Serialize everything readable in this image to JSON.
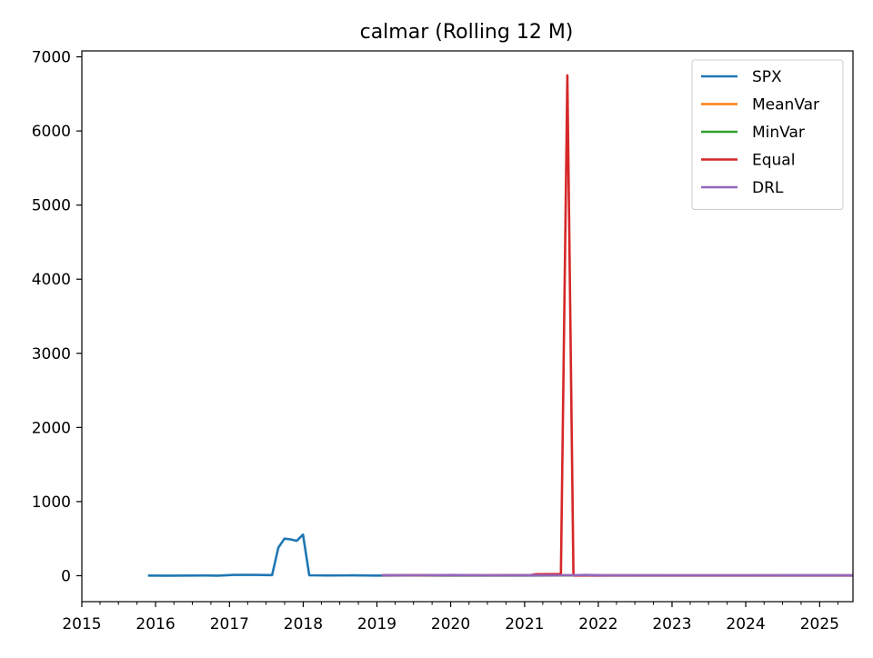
{
  "chart_data": {
    "type": "line",
    "title": "calmar (Rolling 12 M)",
    "xlabel": "",
    "ylabel": "",
    "x_type": "date",
    "xlim": [
      "2015-01-01",
      "2025-06-15"
    ],
    "ylim": [
      -350,
      7080
    ],
    "x_ticks": [
      "2015-01-01",
      "2016-01-01",
      "2017-01-01",
      "2018-01-01",
      "2019-01-01",
      "2020-01-01",
      "2021-01-01",
      "2022-01-01",
      "2023-01-01",
      "2024-01-01",
      "2025-01-01"
    ],
    "x_tick_labels": [
      "2015",
      "2016",
      "2017",
      "2018",
      "2019",
      "2020",
      "2021",
      "2022",
      "2023",
      "2024",
      "2025"
    ],
    "y_ticks": [
      0,
      1000,
      2000,
      3000,
      4000,
      5000,
      6000,
      7000
    ],
    "y_tick_labels": [
      "0",
      "1000",
      "2000",
      "3000",
      "4000",
      "5000",
      "6000",
      "7000"
    ],
    "legend_position": "top-right",
    "grid": false,
    "series": [
      {
        "name": "SPX",
        "color": "#1f77b4",
        "points": [
          [
            "2015-11-30",
            2
          ],
          [
            "2016-02-29",
            1
          ],
          [
            "2016-05-31",
            2
          ],
          [
            "2016-08-31",
            3
          ],
          [
            "2016-10-31",
            1
          ],
          [
            "2017-01-31",
            12
          ],
          [
            "2017-04-30",
            10
          ],
          [
            "2017-07-31",
            8
          ],
          [
            "2017-08-31",
            380
          ],
          [
            "2017-09-30",
            500
          ],
          [
            "2017-10-31",
            490
          ],
          [
            "2017-11-30",
            470
          ],
          [
            "2017-12-31",
            555
          ],
          [
            "2018-01-31",
            5
          ],
          [
            "2018-04-30",
            3
          ],
          [
            "2018-08-31",
            4
          ],
          [
            "2018-12-31",
            2
          ],
          [
            "2019-06-30",
            3
          ],
          [
            "2019-12-31",
            2
          ],
          [
            "2020-06-30",
            2
          ],
          [
            "2020-12-31",
            2
          ],
          [
            "2021-06-30",
            3
          ],
          [
            "2021-12-31",
            2
          ],
          [
            "2022-06-30",
            2
          ],
          [
            "2022-12-31",
            2
          ],
          [
            "2023-06-30",
            2
          ],
          [
            "2023-12-31",
            2
          ],
          [
            "2024-06-30",
            2
          ],
          [
            "2024-12-31",
            2
          ],
          [
            "2025-06-15",
            2
          ]
        ]
      },
      {
        "name": "MeanVar",
        "color": "#ff7f0e",
        "points": [
          [
            "2019-01-31",
            5
          ],
          [
            "2019-12-31",
            6
          ],
          [
            "2020-06-30",
            4
          ],
          [
            "2021-01-31",
            8
          ],
          [
            "2021-06-30",
            6
          ],
          [
            "2022-01-31",
            4
          ],
          [
            "2023-01-31",
            3
          ],
          [
            "2024-01-31",
            3
          ],
          [
            "2025-06-15",
            3
          ]
        ]
      },
      {
        "name": "MinVar",
        "color": "#2ca02c",
        "points": [
          [
            "2019-01-31",
            4
          ],
          [
            "2019-12-31",
            5
          ],
          [
            "2020-06-30",
            3
          ],
          [
            "2021-01-31",
            6
          ],
          [
            "2021-06-30",
            5
          ],
          [
            "2022-01-31",
            3
          ],
          [
            "2023-01-31",
            3
          ],
          [
            "2024-01-31",
            3
          ],
          [
            "2025-06-15",
            3
          ]
        ]
      },
      {
        "name": "Equal",
        "color": "#d62728",
        "points": [
          [
            "2019-01-31",
            6
          ],
          [
            "2019-12-31",
            8
          ],
          [
            "2020-06-30",
            5
          ],
          [
            "2021-01-31",
            8
          ],
          [
            "2021-02-28",
            20
          ],
          [
            "2021-06-15",
            22
          ],
          [
            "2021-06-30",
            20
          ],
          [
            "2021-08-01",
            6750
          ],
          [
            "2021-08-31",
            15
          ],
          [
            "2021-09-05",
            2
          ],
          [
            "2021-10-31",
            3
          ],
          [
            "2022-06-30",
            3
          ],
          [
            "2023-06-30",
            3
          ],
          [
            "2024-06-30",
            3
          ],
          [
            "2025-06-15",
            3
          ]
        ]
      },
      {
        "name": "DRL",
        "color": "#9467bd",
        "points": [
          [
            "2019-01-31",
            7
          ],
          [
            "2019-06-30",
            6
          ],
          [
            "2019-12-31",
            9
          ],
          [
            "2020-06-30",
            6
          ],
          [
            "2021-01-31",
            7
          ],
          [
            "2021-06-30",
            6
          ],
          [
            "2021-09-30",
            8
          ],
          [
            "2021-10-31",
            10
          ],
          [
            "2022-01-31",
            6
          ],
          [
            "2022-06-30",
            5
          ],
          [
            "2023-01-31",
            5
          ],
          [
            "2024-01-31",
            5
          ],
          [
            "2024-12-31",
            7
          ],
          [
            "2025-06-15",
            5
          ]
        ]
      }
    ]
  }
}
